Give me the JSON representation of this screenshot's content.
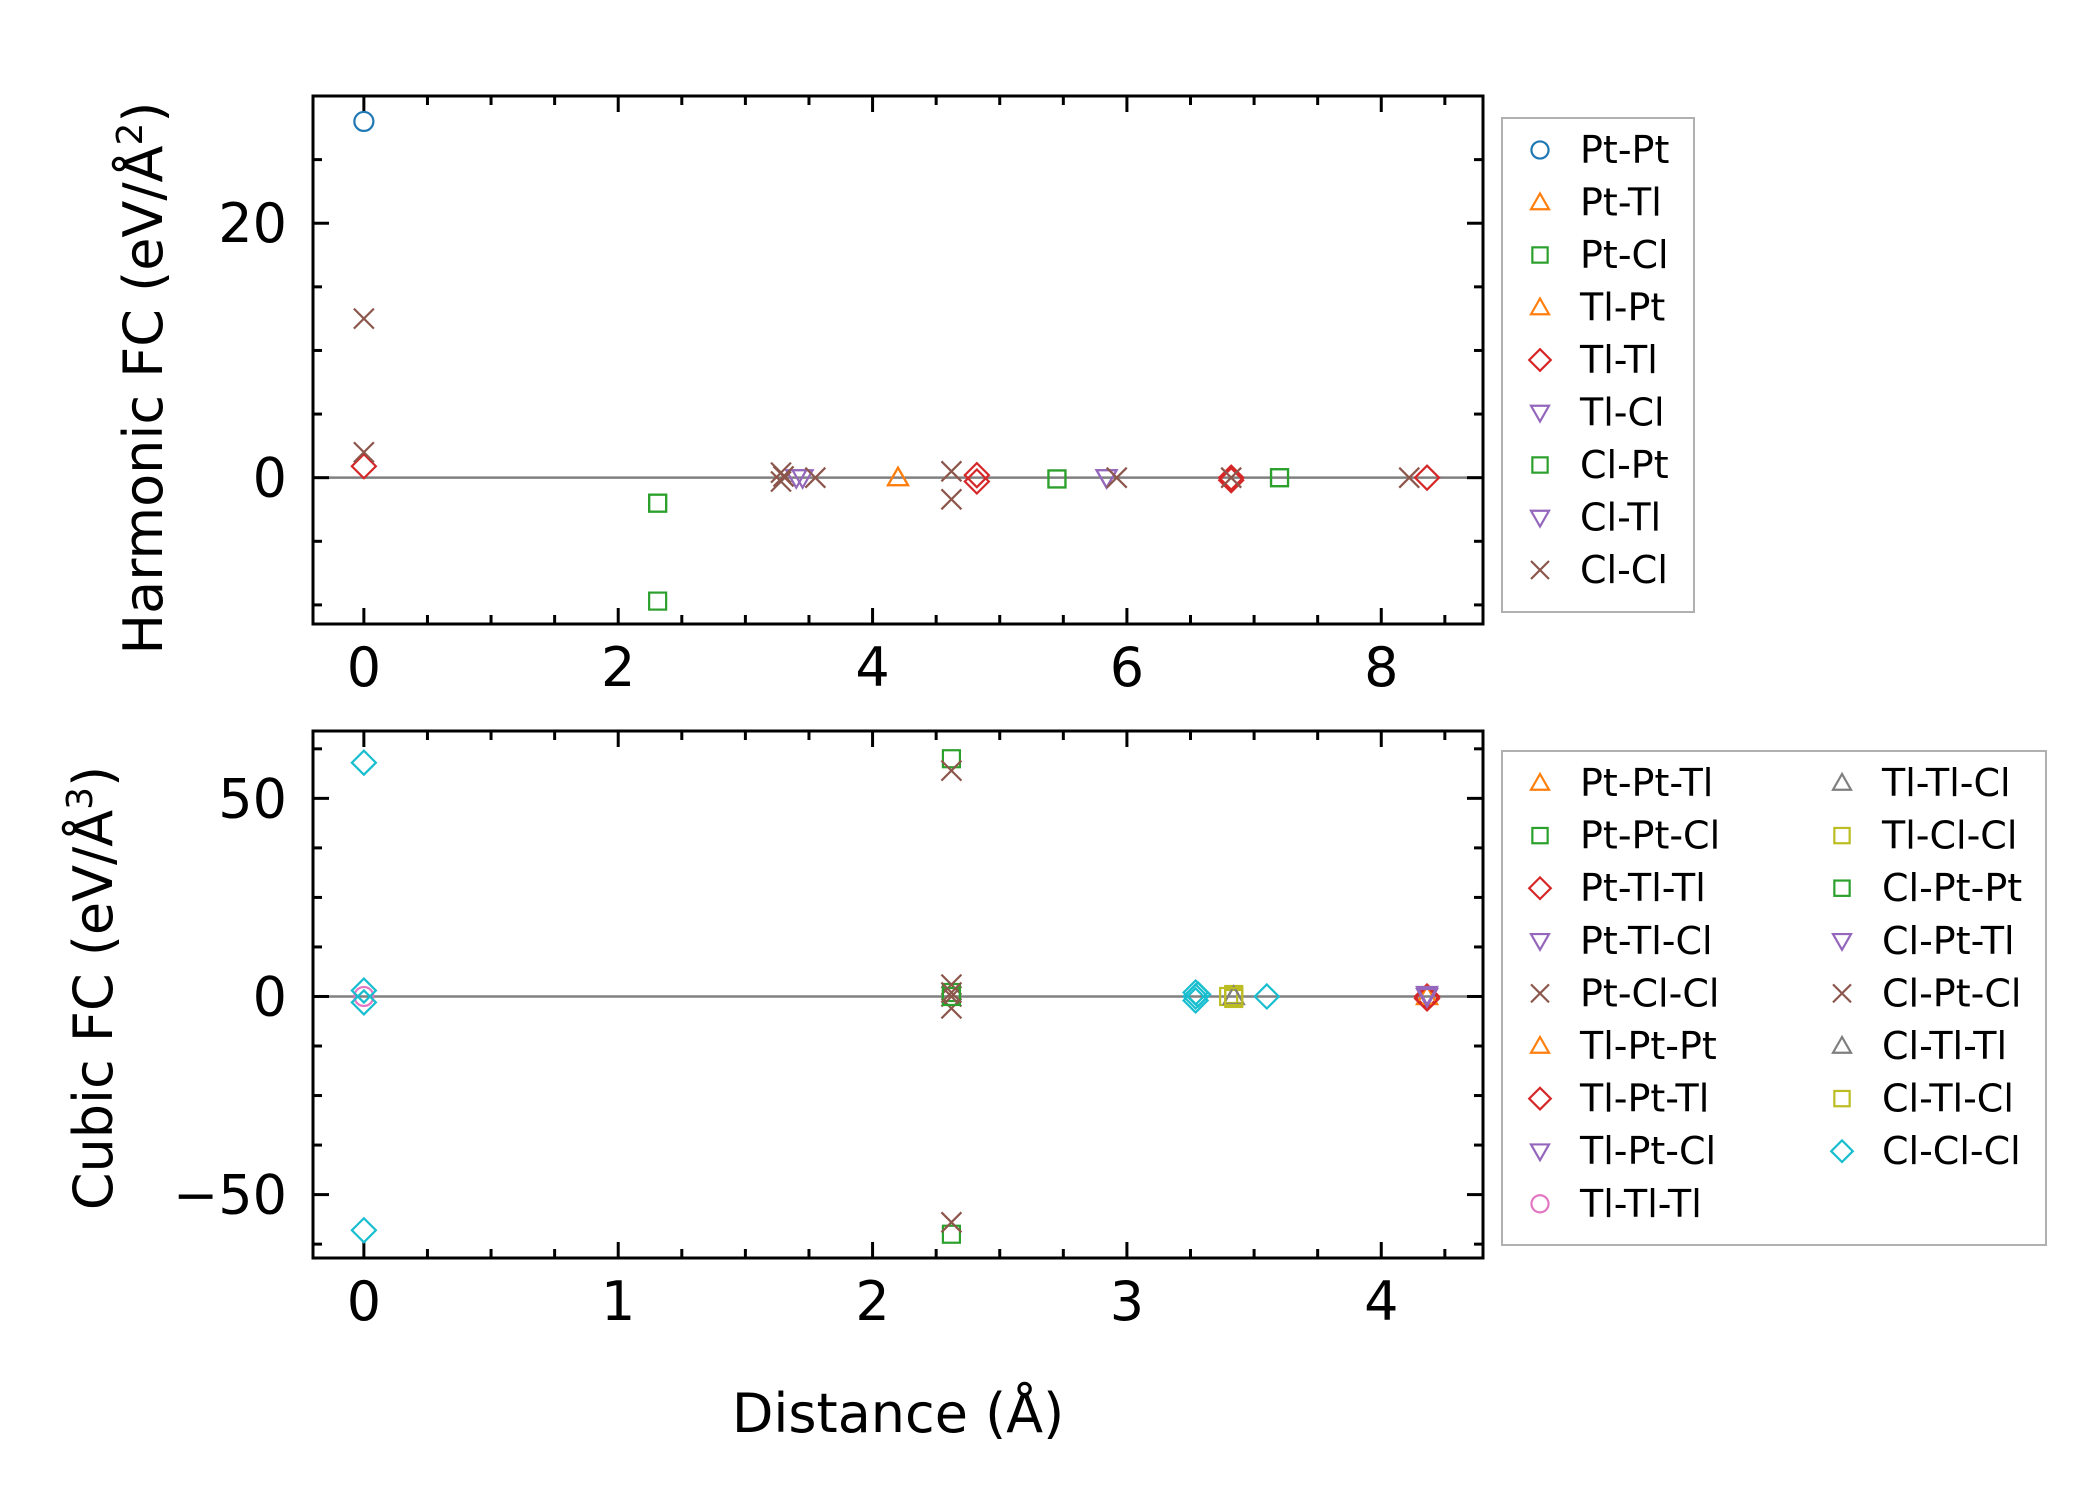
{
  "chart_data": [
    {
      "type": "scatter",
      "ylabel": "Harmonic FC (eV/Å²)",
      "ylabel_main": "Harmonic FC (eV/Å",
      "ylabel_sup": "2",
      "ylabel_close": ")",
      "xlabel": "",
      "xlim": [
        -0.4,
        8.8
      ],
      "ylim": [
        -11.5,
        30
      ],
      "xticks": [
        0,
        2,
        4,
        6,
        8
      ],
      "yticks": [
        0,
        20
      ],
      "zero_line": true,
      "legend_position": "outside-right",
      "series": [
        {
          "name": "Pt-Pt",
          "marker": "circle",
          "color": "#1f77b4",
          "points": [
            [
              0,
              28
            ]
          ]
        },
        {
          "name": "Pt-Tl",
          "marker": "triangle-up",
          "color": "#ff7f0e",
          "points": [
            [
              4.2,
              0
            ]
          ]
        },
        {
          "name": "Pt-Cl",
          "marker": "square",
          "color": "#2ca02c",
          "points": [
            [
              2.31,
              -2
            ],
            [
              2.31,
              -9.7
            ],
            [
              5.45,
              -0.1
            ],
            [
              7.2,
              0
            ]
          ]
        },
        {
          "name": "Tl-Pt",
          "marker": "triangle-up",
          "color": "#ff7f0e",
          "points": [
            [
              4.2,
              0
            ]
          ]
        },
        {
          "name": "Tl-Tl",
          "marker": "diamond",
          "color": "#d62728",
          "points": [
            [
              0,
              0.9
            ],
            [
              4.82,
              0.2
            ],
            [
              4.82,
              -0.3
            ],
            [
              6.82,
              0
            ],
            [
              6.82,
              -0.2
            ],
            [
              8.36,
              0
            ]
          ]
        },
        {
          "name": "Tl-Cl",
          "marker": "triangle-down",
          "color": "#9467bd",
          "points": [
            [
              3.4,
              0
            ],
            [
              5.84,
              0
            ]
          ]
        },
        {
          "name": "Cl-Pt",
          "marker": "square",
          "color": "#2ca02c",
          "points": [
            [
              2.31,
              -2
            ],
            [
              5.45,
              -0.1
            ],
            [
              7.2,
              0
            ]
          ]
        },
        {
          "name": "Cl-Tl",
          "marker": "triangle-down",
          "color": "#9467bd",
          "points": [
            [
              3.45,
              0
            ],
            [
              5.84,
              0
            ]
          ]
        },
        {
          "name": "Cl-Cl",
          "marker": "x",
          "color": "#8c564b",
          "points": [
            [
              0,
              12.5
            ],
            [
              0,
              2
            ],
            [
              3.28,
              0.4
            ],
            [
              3.28,
              -0.3
            ],
            [
              3.3,
              0.1
            ],
            [
              3.55,
              0
            ],
            [
              4.62,
              0.5
            ],
            [
              4.62,
              -1.7
            ],
            [
              5.92,
              0
            ],
            [
              6.82,
              0
            ],
            [
              8.22,
              0
            ]
          ]
        }
      ]
    },
    {
      "type": "scatter",
      "ylabel": "Cubic FC (eV/Å³)",
      "ylabel_main": "Cubic FC (eV/Å",
      "ylabel_sup": "3",
      "ylabel_close": ")",
      "xlabel": "Distance (Å)",
      "xlim": [
        -0.2,
        4.4
      ],
      "ylim": [
        -66,
        67
      ],
      "xticks": [
        0,
        1,
        2,
        3,
        4
      ],
      "yticks": [
        -50,
        0,
        50
      ],
      "ytick_labels": [
        "−50",
        "0",
        "50"
      ],
      "zero_line": true,
      "legend_position": "outside-right",
      "legend_columns": 2,
      "series": [
        {
          "name": "Pt-Pt-Tl",
          "marker": "triangle-up",
          "color": "#ff7f0e",
          "points": [
            [
              4.18,
              0
            ]
          ]
        },
        {
          "name": "Pt-Pt-Cl",
          "marker": "square",
          "color": "#2ca02c",
          "points": [
            [
              2.31,
              60
            ],
            [
              2.31,
              -60
            ],
            [
              2.31,
              1
            ]
          ]
        },
        {
          "name": "Pt-Tl-Tl",
          "marker": "diamond",
          "color": "#d62728",
          "points": [
            [
              4.18,
              0
            ]
          ]
        },
        {
          "name": "Pt-Tl-Cl",
          "marker": "triangle-down",
          "color": "#9467bd",
          "points": [
            [
              4.18,
              0
            ]
          ]
        },
        {
          "name": "Pt-Cl-Cl",
          "marker": "x",
          "color": "#8c564b",
          "points": [
            [
              2.31,
              57
            ],
            [
              2.31,
              -57
            ],
            [
              2.31,
              3
            ],
            [
              2.31,
              -3
            ],
            [
              2.31,
              0
            ]
          ]
        },
        {
          "name": "Tl-Pt-Pt",
          "marker": "triangle-up",
          "color": "#ff7f0e",
          "points": [
            [
              4.18,
              0
            ]
          ]
        },
        {
          "name": "Tl-Pt-Tl",
          "marker": "diamond",
          "color": "#d62728",
          "points": [
            [
              4.18,
              -0.5
            ]
          ]
        },
        {
          "name": "Tl-Pt-Cl",
          "marker": "triangle-down",
          "color": "#9467bd",
          "points": [
            [
              4.18,
              0.5
            ]
          ]
        },
        {
          "name": "Tl-Tl-Tl",
          "marker": "circle",
          "color": "#e377c2",
          "points": [
            [
              0,
              0
            ]
          ]
        },
        {
          "name": "Tl-Tl-Cl",
          "marker": "triangle-up",
          "color": "#7f7f7f",
          "points": [
            [
              3.42,
              0
            ]
          ]
        },
        {
          "name": "Tl-Cl-Cl",
          "marker": "square",
          "color": "#bcbd22",
          "points": [
            [
              3.4,
              0
            ],
            [
              3.42,
              0.5
            ],
            [
              3.42,
              -0.5
            ]
          ]
        },
        {
          "name": "Cl-Pt-Pt",
          "marker": "square",
          "color": "#2ca02c",
          "points": [
            [
              2.31,
              0
            ]
          ]
        },
        {
          "name": "Cl-Pt-Tl",
          "marker": "triangle-down",
          "color": "#9467bd",
          "points": [
            [
              4.18,
              0
            ]
          ]
        },
        {
          "name": "Cl-Pt-Cl",
          "marker": "x",
          "color": "#8c564b",
          "points": [
            [
              2.31,
              1
            ]
          ]
        },
        {
          "name": "Cl-Tl-Tl",
          "marker": "triangle-up",
          "color": "#7f7f7f",
          "points": [
            [
              3.42,
              0
            ]
          ]
        },
        {
          "name": "Cl-Tl-Cl",
          "marker": "square",
          "color": "#bcbd22",
          "points": [
            [
              3.42,
              0
            ]
          ]
        },
        {
          "name": "Cl-Cl-Cl",
          "marker": "diamond",
          "color": "#17becf",
          "points": [
            [
              0,
              59
            ],
            [
              0,
              -59
            ],
            [
              0,
              1.5
            ],
            [
              0,
              -1.5
            ],
            [
              3.27,
              0
            ],
            [
              3.27,
              1
            ],
            [
              3.27,
              -1
            ],
            [
              3.28,
              0.5
            ],
            [
              3.55,
              0
            ]
          ]
        }
      ]
    }
  ]
}
